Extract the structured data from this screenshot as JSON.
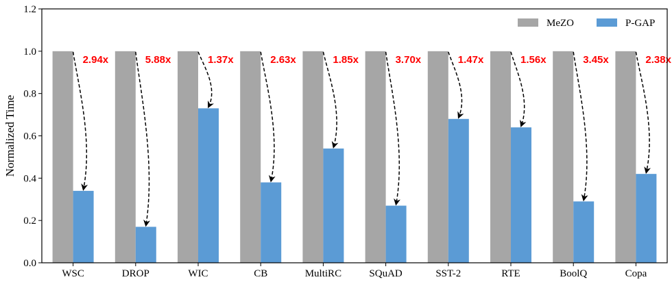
{
  "chart_data": {
    "type": "bar",
    "title": "",
    "xlabel": "",
    "ylabel": "Normalized Time",
    "ylim": [
      0,
      1.2
    ],
    "yticks": [
      "0.0",
      "0.2",
      "0.4",
      "0.6",
      "0.8",
      "1.0",
      "1.2"
    ],
    "categories": [
      "WSC",
      "DROP",
      "WIC",
      "CB",
      "MultiRC",
      "SQuAD",
      "SST-2",
      "RTE",
      "BoolQ",
      "Copa"
    ],
    "series": [
      {
        "name": "MeZO",
        "color": "#a6a6a6",
        "values": [
          1.0,
          1.0,
          1.0,
          1.0,
          1.0,
          1.0,
          1.0,
          1.0,
          1.0,
          1.0
        ]
      },
      {
        "name": "P-GAP",
        "color": "#5b9bd5",
        "values": [
          0.34,
          0.17,
          0.73,
          0.38,
          0.54,
          0.27,
          0.68,
          0.64,
          0.29,
          0.42
        ]
      }
    ],
    "speedups": [
      "2.94x",
      "5.88x",
      "1.37x",
      "2.63x",
      "1.85x",
      "3.70x",
      "1.47x",
      "1.56x",
      "3.45x",
      "2.38x"
    ],
    "speedup_color": "#ff0000",
    "legend_position": "top-right",
    "grid": false
  }
}
